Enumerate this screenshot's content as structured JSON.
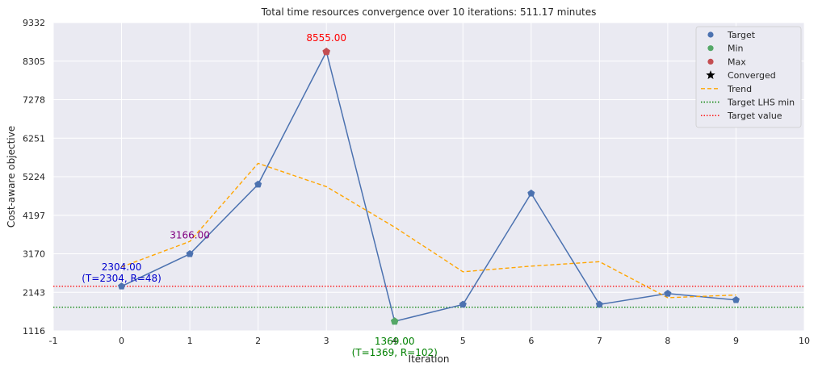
{
  "chart_data": {
    "type": "line",
    "title": "Total time resources convergence over 10 iterations: 511.17 minutes",
    "xlabel": "Iteration",
    "ylabel": "Cost-aware objective",
    "xlim": [
      -1,
      10
    ],
    "ylim": [
      1116,
      9332
    ],
    "x_ticks": [
      "-1",
      "0",
      "1",
      "2",
      "3",
      "4",
      "5",
      "6",
      "7",
      "8",
      "9",
      "10"
    ],
    "y_ticks": [
      "1116",
      "2143",
      "3170",
      "4197",
      "5224",
      "6251",
      "7278",
      "8305",
      "9332"
    ],
    "grid": true,
    "legend_position": "top-right",
    "series": [
      {
        "name": "Target",
        "color": "#4c72b0",
        "x": [
          0,
          1,
          2,
          3,
          4,
          5,
          6,
          7,
          8,
          9
        ],
        "values": [
          2304,
          3166,
          5020,
          8555,
          1369,
          1820,
          4780,
          1820,
          2110,
          1940
        ]
      },
      {
        "name": "Trend",
        "color": "#ffa500",
        "style": "dashed",
        "x": [
          0,
          1,
          2,
          3,
          4,
          5,
          6,
          7,
          8,
          9
        ],
        "values": [
          2820,
          3500,
          5580,
          4960,
          3880,
          2690,
          2840,
          2960,
          2000,
          2070
        ]
      }
    ],
    "min_point": {
      "x": 4,
      "y": 1369,
      "color": "#55a868"
    },
    "max_point": {
      "x": 3,
      "y": 8555,
      "color": "#c44e52"
    },
    "hlines": [
      {
        "name": "Target LHS min",
        "y": 1745,
        "color": "#008000"
      },
      {
        "name": "Target value",
        "y": 2304,
        "color": "#ff0000"
      }
    ],
    "legend": [
      {
        "label": "Target",
        "kind": "dot",
        "color": "#4c72b0"
      },
      {
        "label": "Min",
        "kind": "dot",
        "color": "#55a868"
      },
      {
        "label": "Max",
        "kind": "dot",
        "color": "#c44e52"
      },
      {
        "label": "Converged",
        "kind": "star",
        "color": "#000000"
      },
      {
        "label": "Trend",
        "kind": "dashed",
        "color": "#ffa500"
      },
      {
        "label": "Target LHS min",
        "kind": "dotted",
        "color": "#008000"
      },
      {
        "label": "Target value",
        "kind": "dotted",
        "color": "#ff0000"
      }
    ],
    "annotations": [
      {
        "text": "8555.00",
        "x": 3,
        "y": 8555,
        "color": "#ff0000"
      },
      {
        "text": "2304.00",
        "x": 0,
        "y": 2304,
        "color": "#0000cd"
      },
      {
        "text": "(T=2304, R=48)",
        "x": 0,
        "y": 2304,
        "color": "#0000cd"
      },
      {
        "text": "3166.00",
        "x": 1,
        "y": 3166,
        "color": "#800080"
      },
      {
        "text": "1369.00",
        "x": 4,
        "y": 1369,
        "color": "#008000"
      },
      {
        "text": "(T=1369, R=102)",
        "x": 4,
        "y": 1369,
        "color": "#008000"
      }
    ]
  }
}
